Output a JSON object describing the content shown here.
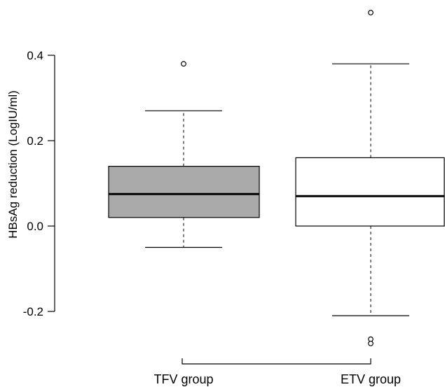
{
  "chart_data": {
    "type": "boxplot",
    "ylabel": "HBsAg reduction (LogIU/ml)",
    "xlabel": "",
    "ylim": [
      -0.25,
      0.52
    ],
    "y_ticks": [
      0.4,
      0.2,
      0.0,
      -0.2
    ],
    "y_tick_labels": [
      "0.4",
      "0.2",
      "0.0",
      "-0.2"
    ],
    "grid": false,
    "categories": [
      "TFV group",
      "ETV group"
    ],
    "boxes": [
      {
        "category": "TFV group",
        "fill": "#aaaaaa",
        "whisker_low": -0.05,
        "q1": 0.02,
        "median": 0.075,
        "q3": 0.14,
        "whisker_high": 0.27,
        "outliers": [
          0.38
        ]
      },
      {
        "category": "ETV group",
        "fill": "#ffffff",
        "whisker_low": -0.21,
        "q1": 0.0,
        "median": 0.07,
        "q3": 0.16,
        "whisker_high": 0.38,
        "outliers": [
          0.5,
          -0.265,
          -0.275
        ]
      }
    ]
  }
}
